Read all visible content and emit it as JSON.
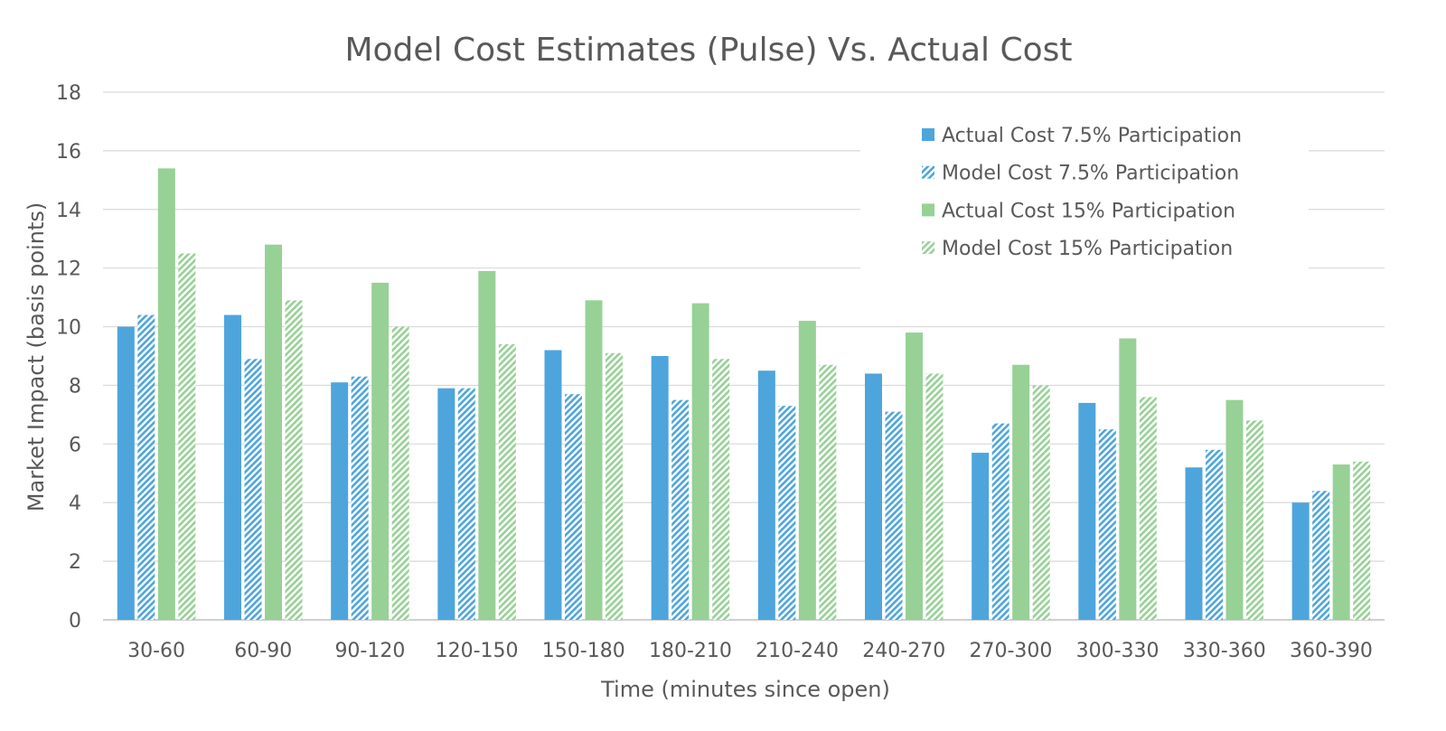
{
  "chart_data": {
    "type": "bar",
    "title": "Model Cost Estimates (Pulse) Vs. Actual Cost",
    "xlabel": "Time (minutes since open)",
    "ylabel": "Market Impact (basis points)",
    "ylim": [
      0,
      18
    ],
    "yticks": [
      "0",
      "2",
      "4",
      "6",
      "8",
      "10",
      "12",
      "14",
      "16",
      "18"
    ],
    "grid": true,
    "legend": "top-right",
    "categories": [
      "30-60",
      "60-90",
      "90-120",
      "120-150",
      "150-180",
      "180-210",
      "210-240",
      "240-270",
      "270-300",
      "300-330",
      "330-360",
      "360-390"
    ],
    "series": [
      {
        "name": "Actual Cost 7.5% Participation",
        "color": "#4ea5dc",
        "style": "solid",
        "values": [
          10.0,
          10.4,
          8.1,
          7.9,
          9.2,
          9.0,
          8.5,
          8.4,
          5.7,
          7.4,
          5.2,
          4.0
        ]
      },
      {
        "name": "Model Cost 7.5% Participation",
        "color": "#4ea5dc",
        "style": "hatched",
        "values": [
          10.4,
          8.9,
          8.3,
          7.9,
          7.7,
          7.5,
          7.3,
          7.1,
          6.7,
          6.5,
          5.8,
          4.4
        ]
      },
      {
        "name": "Actual Cost 15% Participation",
        "color": "#97d196",
        "style": "solid",
        "values": [
          15.4,
          12.8,
          11.5,
          11.9,
          10.9,
          10.8,
          10.2,
          9.8,
          8.7,
          9.6,
          7.5,
          5.3
        ]
      },
      {
        "name": "Model Cost 15% Participation",
        "color": "#97d196",
        "style": "hatched",
        "values": [
          12.5,
          10.9,
          10.0,
          9.4,
          9.1,
          8.9,
          8.7,
          8.4,
          8.0,
          7.6,
          6.8,
          5.4
        ]
      }
    ]
  }
}
